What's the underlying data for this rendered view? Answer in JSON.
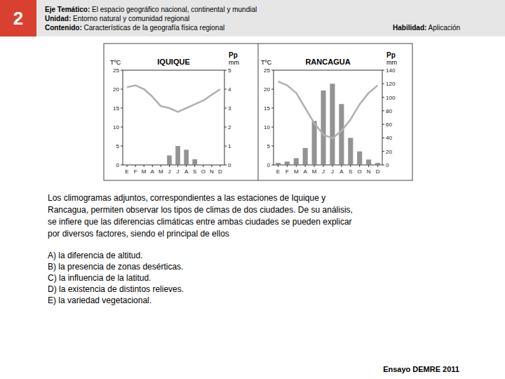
{
  "header": {
    "number": "2",
    "line1_bold": "Eje Temático:",
    "line1_rest": " El espacio geográfico nacional, continental y mundial",
    "line2_bold": "Unidad:",
    "line2_rest": " Entorno natural y comunidad regional",
    "line3_bold": "Contenido:",
    "line3_rest": " Características de la geografía física regional",
    "habilidad_bold": "Habilidad:",
    "habilidad_rest": " Aplicación"
  },
  "chart_data": [
    {
      "type": "bar",
      "title": "IQUIQUE",
      "ylabel": "TºC",
      "y2label": [
        "Pp",
        "mm"
      ],
      "categories": [
        "E",
        "F",
        "M",
        "A",
        "M",
        "J",
        "J",
        "A",
        "S",
        "O",
        "N",
        "D"
      ],
      "series": [
        {
          "type": "bar",
          "axis": "y2",
          "color": "#808080",
          "values": [
            0,
            0,
            0,
            0,
            0,
            0.5,
            1.0,
            0.8,
            0.3,
            0,
            0,
            0
          ]
        },
        {
          "type": "line",
          "color": "#b0b0b0",
          "values": [
            20.5,
            21,
            20,
            18,
            15.5,
            15,
            14,
            15,
            16,
            17,
            18.5,
            20
          ]
        }
      ],
      "ylim": [
        0,
        25
      ],
      "yticks": [
        0,
        5,
        10,
        15,
        20,
        25
      ],
      "y2lim": [
        0,
        5
      ],
      "y2ticks": [
        0,
        1,
        2,
        3,
        4,
        5
      ],
      "grid": false
    },
    {
      "type": "bar",
      "title": "RANCAGUA",
      "ylabel": "TºC",
      "y2label": [
        "Pp",
        "mm"
      ],
      "categories": [
        "E",
        "F",
        "M",
        "A",
        "M",
        "J",
        "J",
        "A",
        "S",
        "O",
        "N",
        "D"
      ],
      "series": [
        {
          "type": "bar",
          "axis": "y2",
          "color": "#808080",
          "values": [
            3,
            5,
            10,
            25,
            65,
            110,
            120,
            90,
            40,
            20,
            8,
            3
          ]
        },
        {
          "type": "line",
          "color": "#b0b0b0",
          "values": [
            22,
            21,
            19,
            15,
            11,
            8,
            7,
            9,
            12,
            16,
            19,
            21
          ]
        }
      ],
      "ylim": [
        0,
        25
      ],
      "yticks": [
        0,
        5,
        10,
        15,
        20,
        25
      ],
      "y2lim": [
        0,
        140
      ],
      "y2ticks": [
        0,
        20,
        40,
        60,
        80,
        100,
        120,
        140
      ],
      "grid": false
    }
  ],
  "body_text": [
    "Los climogramas adjuntos, correspondientes a las estaciones de Iquique y",
    "Rancagua, permiten observar los tipos de climas de dos ciudades. De su análisis,",
    "se infiere que las diferencias climáticas entre ambas ciudades se pueden explicar",
    "por diversos factores, siendo el principal de ellos"
  ],
  "options": [
    "A) la diferencia de altitud.",
    "B) la presencia de zonas desérticas.",
    "C) la influencia de la latitud.",
    "D) la existencia de distintos relieves.",
    "E) la variedad vegetacional."
  ],
  "footer": "Ensayo DEMRE 2011"
}
